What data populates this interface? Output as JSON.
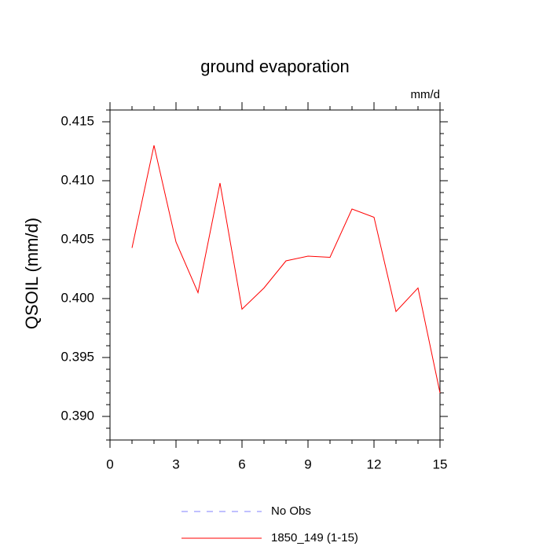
{
  "chart_data": {
    "type": "line",
    "title": "ground evaporation",
    "units": "mm/d",
    "y_label": "QSOIL  (mm/d)",
    "x": [
      1,
      2,
      3,
      4,
      5,
      6,
      7,
      8,
      9,
      10,
      11,
      12,
      13,
      14,
      15
    ],
    "series": [
      {
        "name": "No Obs",
        "color": "#8080ff",
        "dashed": true,
        "values": [
          null,
          null,
          null,
          null,
          null,
          null,
          null,
          null,
          null,
          null,
          null,
          null,
          null,
          null,
          null
        ]
      },
      {
        "name": "1850_149 (1-15)",
        "color": "#ff0000",
        "dashed": false,
        "values": [
          0.4043,
          0.413,
          0.4048,
          0.4005,
          0.4098,
          0.3991,
          0.4009,
          0.4032,
          0.4036,
          0.4035,
          0.4076,
          0.4069,
          0.3989,
          0.4009,
          0.392
        ]
      }
    ],
    "xlim": [
      0,
      15
    ],
    "xticks": [
      0,
      3,
      6,
      9,
      12,
      15
    ],
    "xminorticks": [
      1,
      2,
      4,
      5,
      7,
      8,
      10,
      11,
      13,
      14
    ],
    "ylim": [
      0.388,
      0.416
    ],
    "yticks": [
      {
        "value": 0.39,
        "label": "0.390"
      },
      0.395,
      {
        "value": 0.4,
        "label": "0.400"
      },
      0.405,
      {
        "value": 0.41,
        "label": "0.410"
      },
      0.415
    ],
    "yminorticks": [
      0.388,
      0.389,
      0.391,
      0.392,
      0.393,
      0.394,
      0.396,
      0.397,
      0.398,
      0.399,
      0.401,
      0.402,
      0.403,
      0.404,
      0.406,
      0.407,
      0.408,
      0.409,
      0.411,
      0.412,
      0.413,
      0.414,
      0.416
    ]
  }
}
